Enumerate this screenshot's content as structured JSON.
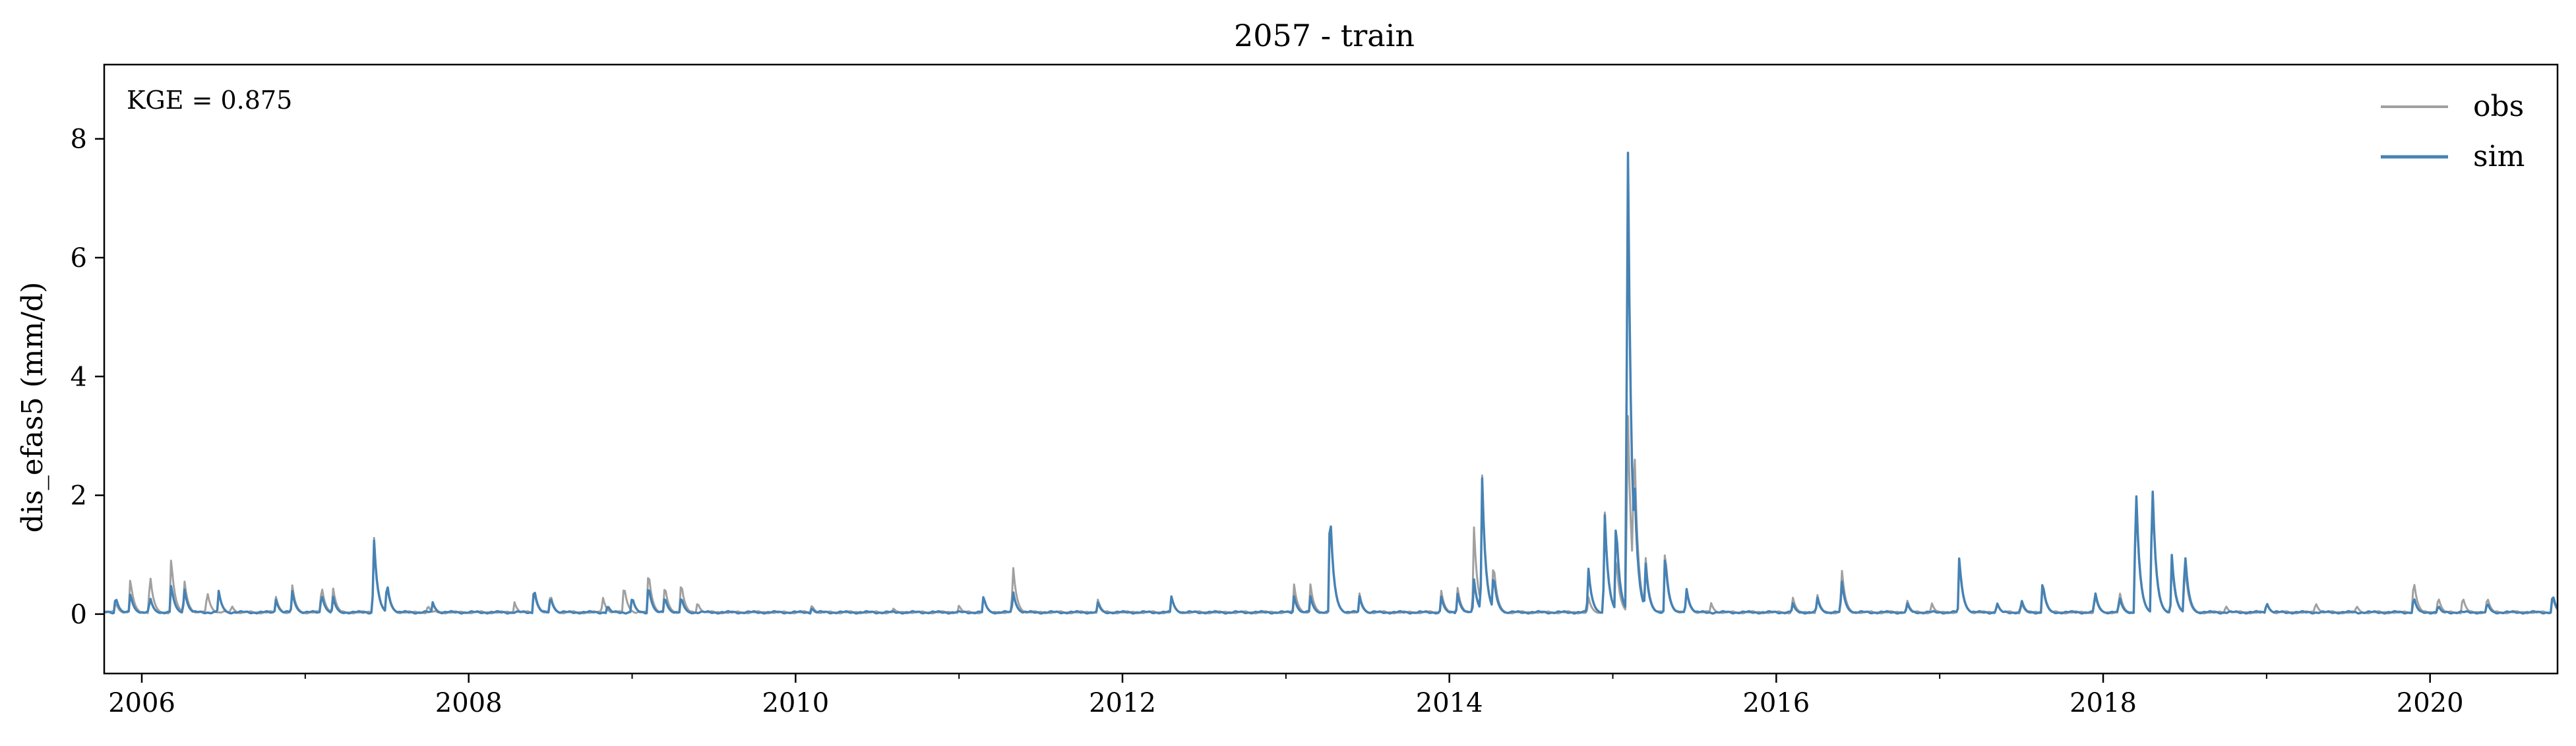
{
  "chart_data": {
    "type": "line",
    "title": "2057 - train",
    "xlabel": "",
    "ylabel": "dis_efas5 (mm/d)",
    "xlim": [
      2005.77,
      2020.78
    ],
    "ylim": [
      -1.0,
      9.25
    ],
    "x_ticks": [
      2006,
      2008,
      2010,
      2012,
      2014,
      2016,
      2018,
      2020
    ],
    "x_tick_labels": [
      "2006",
      "2008",
      "2010",
      "2012",
      "2014",
      "2016",
      "2018",
      "2020"
    ],
    "y_ticks": [
      0,
      2,
      4,
      6,
      8
    ],
    "y_tick_labels": [
      "0",
      "2",
      "4",
      "6",
      "8"
    ],
    "grid": false,
    "legend_position": "top-right",
    "annotation": "KGE = 0.875",
    "colors": {
      "obs": "#a0a0a0",
      "sim": "#4682b4"
    },
    "baseline": 0.03,
    "series": [
      {
        "name": "obs",
        "peaks": [
          [
            2005.84,
            0.2
          ],
          [
            2005.93,
            0.6
          ],
          [
            2006.05,
            0.7
          ],
          [
            2006.18,
            0.95
          ],
          [
            2006.26,
            0.6
          ],
          [
            2006.4,
            0.4
          ],
          [
            2006.55,
            0.15
          ],
          [
            2006.82,
            0.3
          ],
          [
            2006.92,
            0.5
          ],
          [
            2007.1,
            0.5
          ],
          [
            2007.17,
            0.45
          ],
          [
            2007.42,
            1.35
          ],
          [
            2007.5,
            0.5
          ],
          [
            2007.75,
            0.15
          ],
          [
            2008.28,
            0.2
          ],
          [
            2008.4,
            0.4
          ],
          [
            2008.5,
            0.35
          ],
          [
            2008.82,
            0.3
          ],
          [
            2008.95,
            0.5
          ],
          [
            2009.1,
            0.75
          ],
          [
            2009.2,
            0.5
          ],
          [
            2009.3,
            0.55
          ],
          [
            2009.4,
            0.2
          ],
          [
            2010.1,
            0.15
          ],
          [
            2010.6,
            0.1
          ],
          [
            2011.0,
            0.15
          ],
          [
            2011.15,
            0.3
          ],
          [
            2011.33,
            0.85
          ],
          [
            2011.85,
            0.25
          ],
          [
            2012.3,
            0.3
          ],
          [
            2013.05,
            0.5
          ],
          [
            2013.15,
            0.5
          ],
          [
            2013.27,
            1.8
          ],
          [
            2013.45,
            0.35
          ],
          [
            2013.95,
            0.4
          ],
          [
            2014.05,
            0.45
          ],
          [
            2014.15,
            1.5
          ],
          [
            2014.2,
            2.4
          ],
          [
            2014.27,
            0.9
          ],
          [
            2014.85,
            0.3
          ],
          [
            2014.95,
            1.8
          ],
          [
            2015.02,
            1.0
          ],
          [
            2015.09,
            3.8
          ],
          [
            2015.13,
            3.2
          ],
          [
            2015.2,
            1.0
          ],
          [
            2015.32,
            1.1
          ],
          [
            2015.45,
            0.4
          ],
          [
            2015.6,
            0.2
          ],
          [
            2016.1,
            0.3
          ],
          [
            2016.25,
            0.35
          ],
          [
            2016.4,
            0.8
          ],
          [
            2016.8,
            0.25
          ],
          [
            2016.95,
            0.2
          ],
          [
            2017.12,
            0.9
          ],
          [
            2017.35,
            0.2
          ],
          [
            2017.5,
            0.2
          ],
          [
            2017.63,
            0.5
          ],
          [
            2017.95,
            0.35
          ],
          [
            2018.1,
            0.4
          ],
          [
            2018.2,
            2.2
          ],
          [
            2018.3,
            2.3
          ],
          [
            2018.42,
            0.9
          ],
          [
            2018.5,
            0.9
          ],
          [
            2018.75,
            0.15
          ],
          [
            2019.0,
            0.2
          ],
          [
            2019.3,
            0.2
          ],
          [
            2019.55,
            0.15
          ],
          [
            2019.9,
            0.6
          ],
          [
            2020.05,
            0.3
          ],
          [
            2020.2,
            0.3
          ],
          [
            2020.35,
            0.3
          ],
          [
            2020.75,
            0.3
          ]
        ]
      },
      {
        "name": "sim",
        "peaks": [
          [
            2005.84,
            0.3
          ],
          [
            2005.93,
            0.35
          ],
          [
            2006.05,
            0.3
          ],
          [
            2006.18,
            0.5
          ],
          [
            2006.26,
            0.45
          ],
          [
            2006.47,
            0.4
          ],
          [
            2006.82,
            0.25
          ],
          [
            2006.92,
            0.4
          ],
          [
            2007.1,
            0.35
          ],
          [
            2007.17,
            0.3
          ],
          [
            2007.42,
            1.3
          ],
          [
            2007.5,
            0.55
          ],
          [
            2007.78,
            0.2
          ],
          [
            2008.4,
            0.45
          ],
          [
            2008.5,
            0.3
          ],
          [
            2008.85,
            0.15
          ],
          [
            2009.0,
            0.3
          ],
          [
            2009.1,
            0.5
          ],
          [
            2009.2,
            0.3
          ],
          [
            2009.3,
            0.3
          ],
          [
            2010.1,
            0.1
          ],
          [
            2011.15,
            0.3
          ],
          [
            2011.33,
            0.4
          ],
          [
            2011.85,
            0.2
          ],
          [
            2012.3,
            0.3
          ],
          [
            2013.05,
            0.3
          ],
          [
            2013.15,
            0.3
          ],
          [
            2013.27,
            1.85
          ],
          [
            2013.45,
            0.3
          ],
          [
            2013.95,
            0.3
          ],
          [
            2014.05,
            0.35
          ],
          [
            2014.15,
            0.6
          ],
          [
            2014.2,
            2.35
          ],
          [
            2014.27,
            0.7
          ],
          [
            2014.85,
            0.8
          ],
          [
            2014.95,
            1.75
          ],
          [
            2015.02,
            1.6
          ],
          [
            2015.09,
            8.85
          ],
          [
            2015.13,
            2.6
          ],
          [
            2015.2,
            0.9
          ],
          [
            2015.32,
            1.0
          ],
          [
            2015.45,
            0.45
          ],
          [
            2016.1,
            0.2
          ],
          [
            2016.25,
            0.3
          ],
          [
            2016.4,
            0.6
          ],
          [
            2016.8,
            0.2
          ],
          [
            2017.12,
            0.95
          ],
          [
            2017.35,
            0.2
          ],
          [
            2017.5,
            0.25
          ],
          [
            2017.63,
            0.55
          ],
          [
            2017.95,
            0.4
          ],
          [
            2018.1,
            0.3
          ],
          [
            2018.2,
            2.3
          ],
          [
            2018.3,
            2.4
          ],
          [
            2018.42,
            1.0
          ],
          [
            2018.5,
            1.1
          ],
          [
            2019.0,
            0.2
          ],
          [
            2019.9,
            0.3
          ],
          [
            2020.05,
            0.15
          ],
          [
            2020.35,
            0.2
          ],
          [
            2020.75,
            0.35
          ]
        ]
      }
    ]
  }
}
